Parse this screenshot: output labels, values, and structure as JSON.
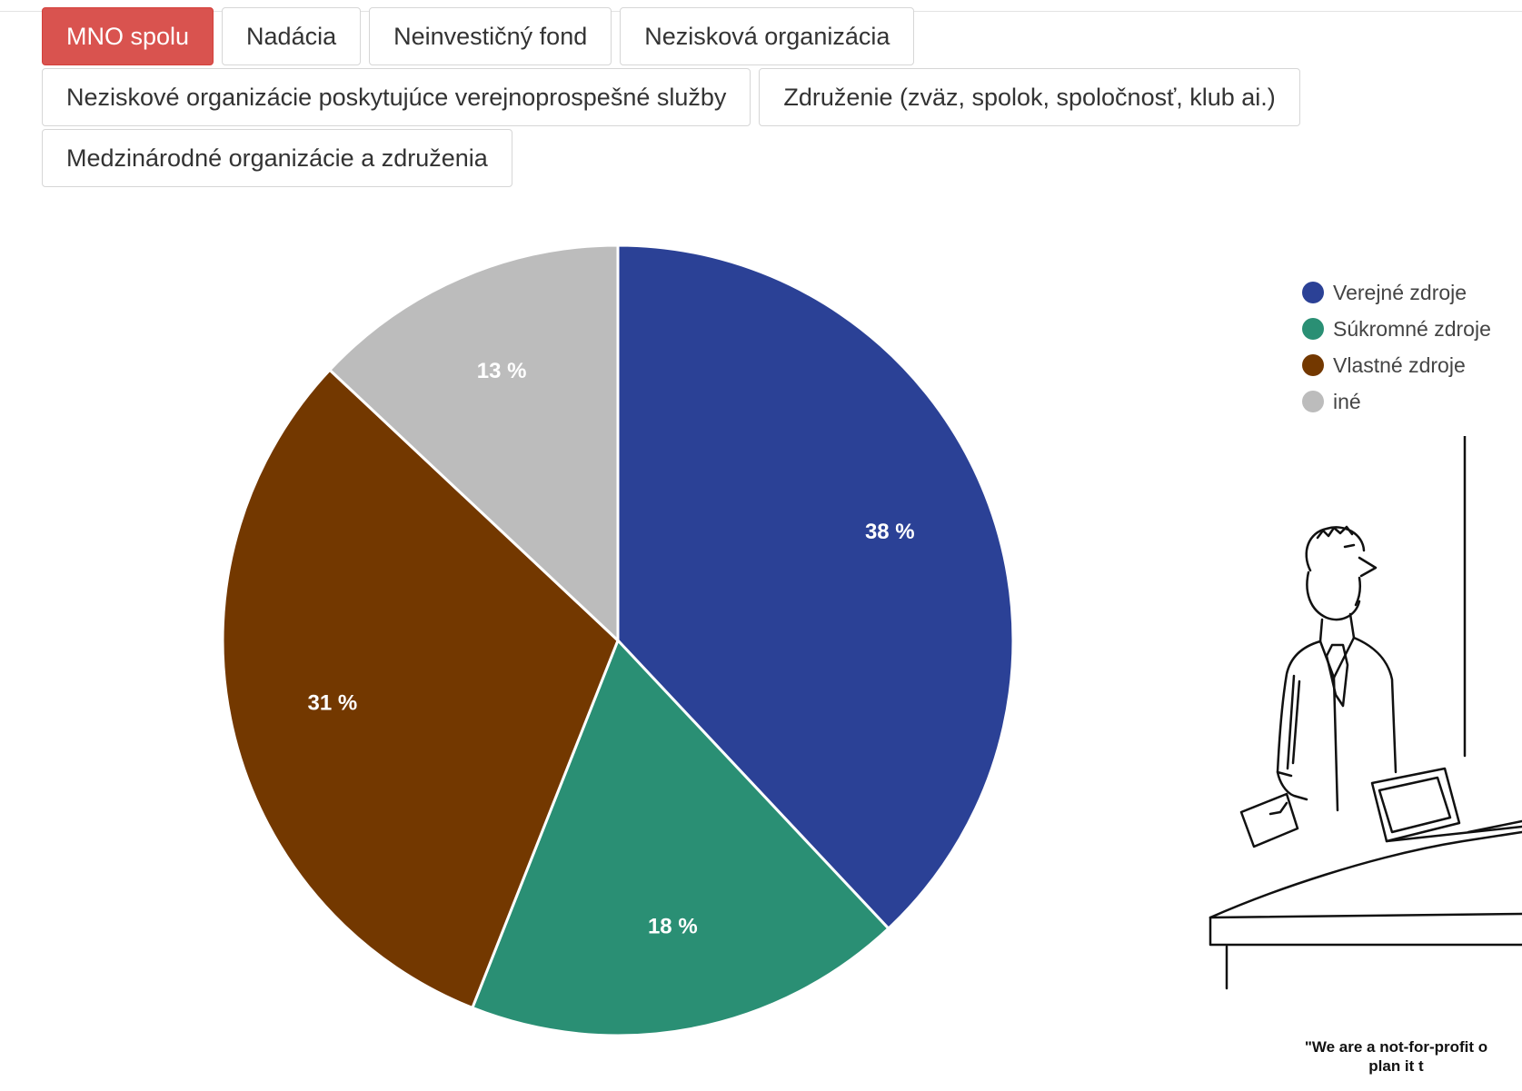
{
  "tabs": [
    {
      "label": "MNO spolu",
      "active": true
    },
    {
      "label": "Nadácia",
      "active": false
    },
    {
      "label": "Neinvestičný fond",
      "active": false
    },
    {
      "label": "Nezisková organizácia",
      "active": false
    },
    {
      "label": "Neziskové organizácie poskytujúce verejnoprospešné služby",
      "active": false
    },
    {
      "label": "Združenie (zväz, spolok, spoločnosť, klub ai.)",
      "active": false
    },
    {
      "label": "Medzinárodné organizácie a združenia",
      "active": false
    }
  ],
  "colors": {
    "accent": "#d9534f"
  },
  "chart_data": {
    "type": "pie",
    "categories": [
      "Verejné zdroje",
      "Súkromné zdroje",
      "Vlastné zdroje",
      "iné"
    ],
    "values": [
      38,
      18,
      31,
      13
    ],
    "labels": [
      "38 %",
      "18 %",
      "31 %",
      "13 %"
    ],
    "colors": [
      "#2b4196",
      "#2a8f74",
      "#733800",
      "#bcbcbc"
    ],
    "legend_placement": "right"
  },
  "cartoon": {
    "caption": "\"We are a not-for-profit o\nplan it t"
  }
}
